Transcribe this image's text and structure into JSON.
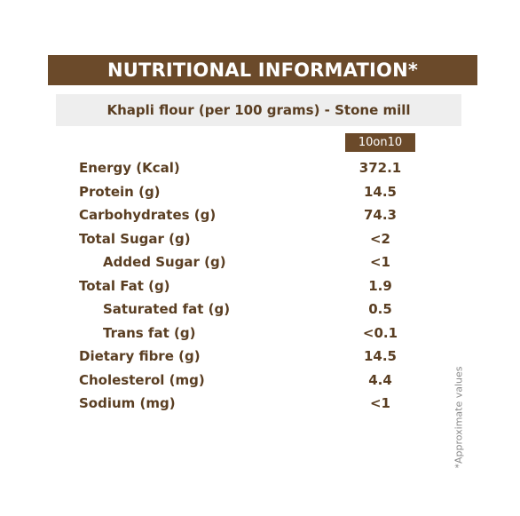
{
  "title": "NUTRITIONAL INFORMATION*",
  "subtitle": "Khapli flour (per 100 grams) - Stone mill",
  "brand_column": "10on10",
  "rows": [
    {
      "label": "Energy (Kcal)",
      "value": "372.1",
      "sub": false
    },
    {
      "label": "Protein (g)",
      "value": "14.5",
      "sub": false
    },
    {
      "label": "Carbohydrates (g)",
      "value": "74.3",
      "sub": false
    },
    {
      "label": "Total Sugar (g)",
      "value": "<2",
      "sub": false
    },
    {
      "label": "Added Sugar (g)",
      "value": "<1",
      "sub": true
    },
    {
      "label": "Total Fat (g)",
      "value": "1.9",
      "sub": false
    },
    {
      "label": "Saturated fat (g)",
      "value": "0.5",
      "sub": true
    },
    {
      "label": "Trans fat (g)",
      "value": "<0.1",
      "sub": true
    },
    {
      "label": "Dietary fibre (g)",
      "value": "14.5",
      "sub": false
    },
    {
      "label": "Cholesterol (mg)",
      "value": "4.4",
      "sub": false
    },
    {
      "label": "Sodium (mg)",
      "value": "<1",
      "sub": false
    }
  ],
  "footnote": "*Approximate values",
  "colors": {
    "brand_brown": "#6b4a2a",
    "text_brown": "#5a3e22",
    "subtitle_bg": "#eeeeee"
  }
}
